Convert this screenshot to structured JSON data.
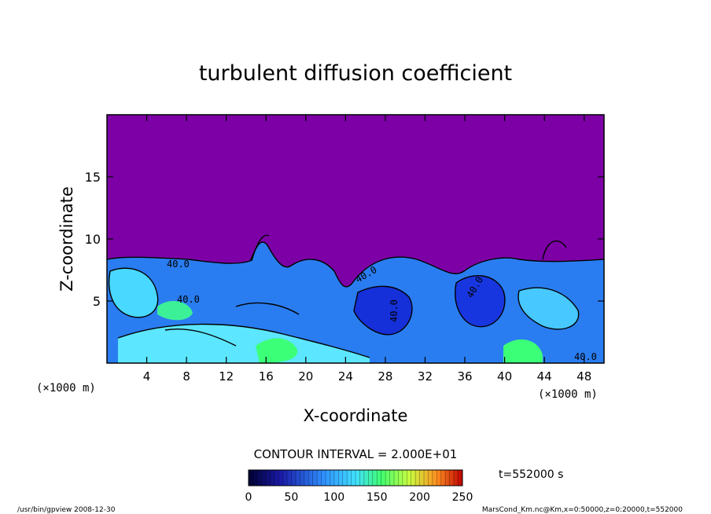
{
  "chart_data": {
    "type": "heatmap",
    "title": "turbulent diffusion coefficient",
    "xlabel": "X-coordinate",
    "ylabel": "Z-coordinate",
    "x_unit_left": "(×1000 m)",
    "x_unit_right": "(×1000 m)",
    "xlim": [
      0,
      50
    ],
    "ylim": [
      0,
      20
    ],
    "xticks": [
      "4",
      "8",
      "12",
      "16",
      "20",
      "24",
      "28",
      "32",
      "36",
      "40",
      "44",
      "48"
    ],
    "yticks": [
      "5",
      "10",
      "15"
    ],
    "contour_interval_text": "CONTOUR INTERVAL = 2.000E+01",
    "contour_labels": [
      "40.0",
      "40.0",
      "40.0",
      "40.0",
      "40.0",
      "40.0"
    ],
    "time_label": "t=552000 s",
    "colorbar": {
      "min": 0,
      "max": 250,
      "ticks": [
        "0",
        "50",
        "100",
        "150",
        "200",
        "250"
      ]
    },
    "turbulent_layer_top_km": 8.2,
    "upper_value": 0
  },
  "footer": {
    "left": "/usr/bin/gpview  2008-12-30",
    "right": "MarsCond_Km.nc@Km,x=0:50000,z=0:20000,t=552000"
  },
  "colors": {
    "background_field": "#7d00a6",
    "low": "#1e2fd8",
    "mid": "#29a3ff",
    "cyan": "#4fe6ff",
    "green": "#3cff78"
  }
}
